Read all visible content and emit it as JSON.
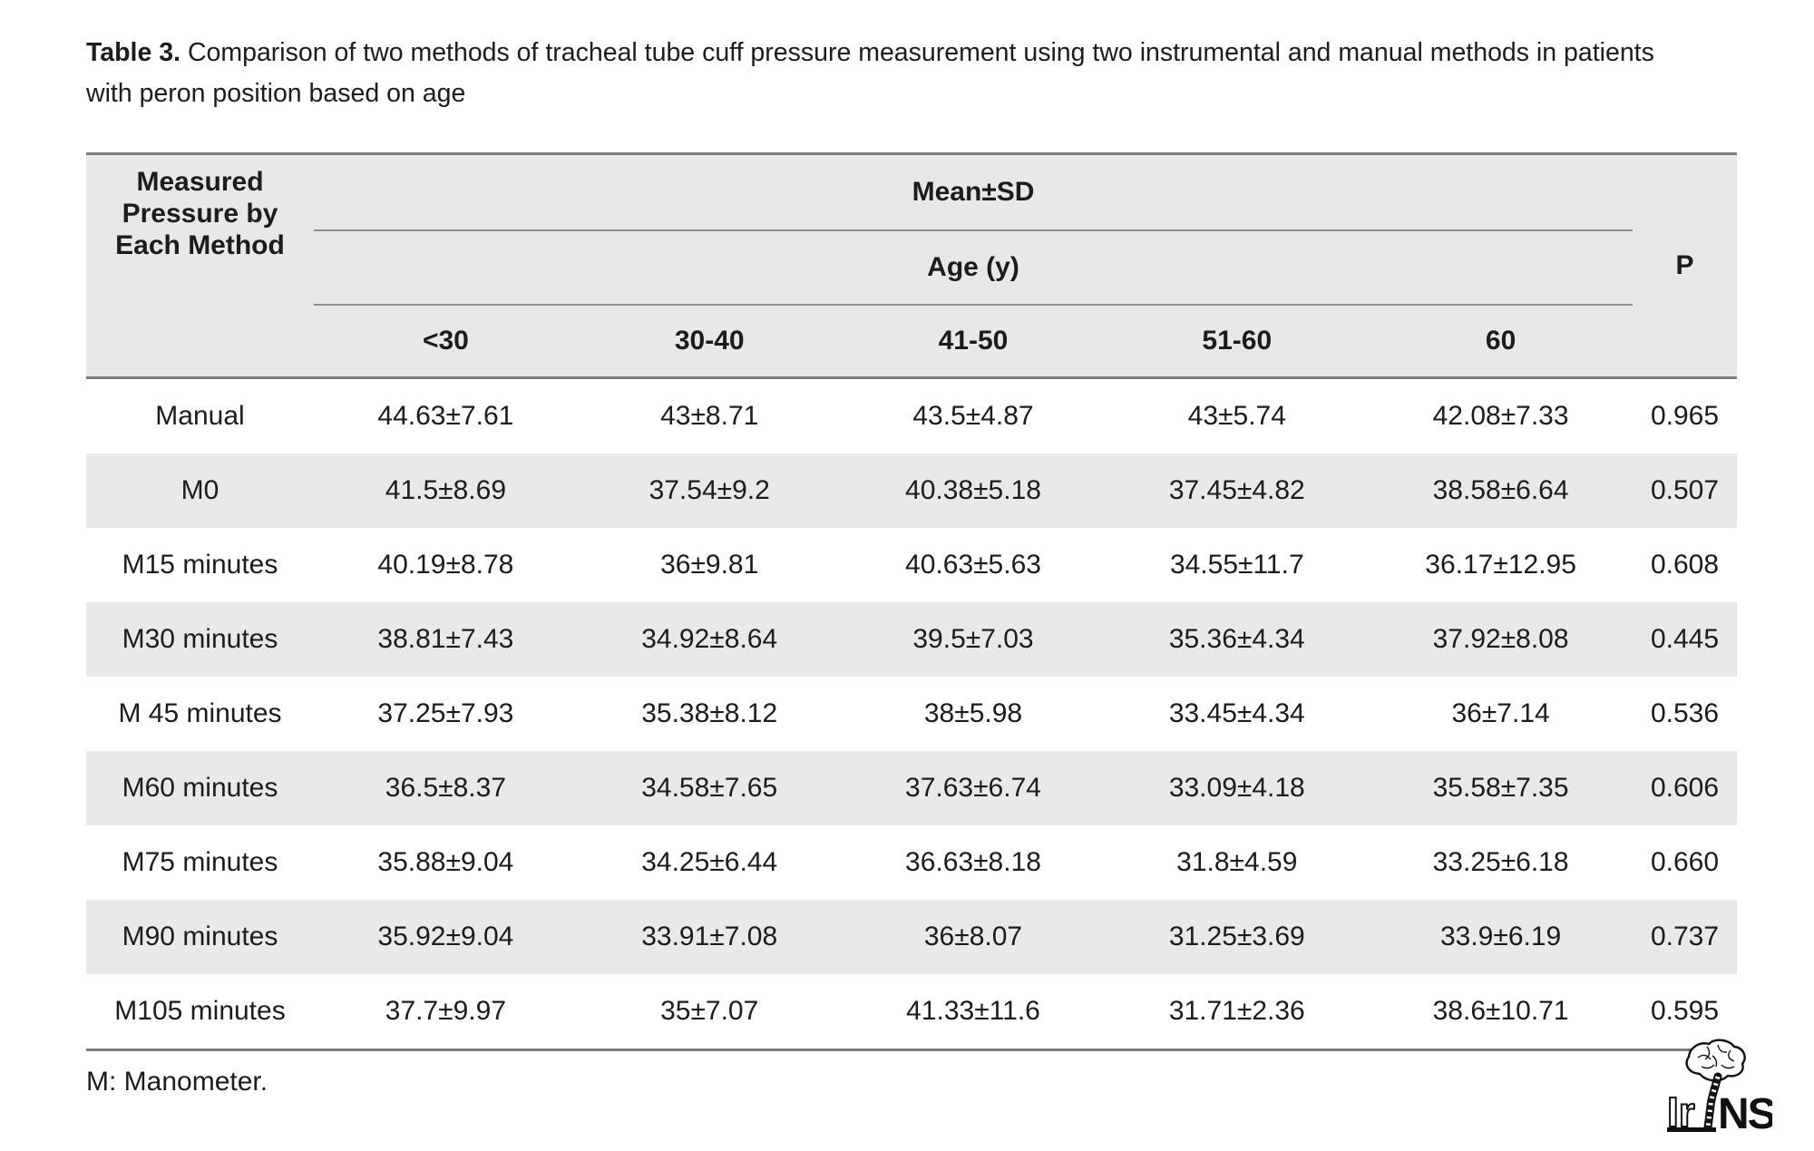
{
  "title": {
    "label": "Table 3.",
    "line1": "Comparison of two methods of tracheal tube cuff pressure measurement using two instrumental and manual methods in patients",
    "line2": "with peron position based on age"
  },
  "table": {
    "header": {
      "col_method": "Measured Pressure by Each Method",
      "mean_sd": "Mean±SD",
      "age": "Age (y)",
      "age_groups": [
        "<30",
        "30-40",
        "41-50",
        "51-60",
        "60"
      ],
      "p": "P"
    },
    "rows": [
      {
        "method": "Manual",
        "values": [
          "44.63±7.61",
          "43±8.71",
          "43.5±4.87",
          "43±5.74",
          "42.08±7.33"
        ],
        "p": "0.965"
      },
      {
        "method": "M0",
        "values": [
          "41.5±8.69",
          "37.54±9.2",
          "40.38±5.18",
          "37.45±4.82",
          "38.58±6.64"
        ],
        "p": "0.507"
      },
      {
        "method": "M15 minutes",
        "values": [
          "40.19±8.78",
          "36±9.81",
          "40.63±5.63",
          "34.55±11.7",
          "36.17±12.95"
        ],
        "p": "0.608"
      },
      {
        "method": "M30 minutes",
        "values": [
          "38.81±7.43",
          "34.92±8.64",
          "39.5±7.03",
          "35.36±4.34",
          "37.92±8.08"
        ],
        "p": "0.445"
      },
      {
        "method": "M 45 minutes",
        "values": [
          "37.25±7.93",
          "35.38±8.12",
          "38±5.98",
          "33.45±4.34",
          "36±7.14"
        ],
        "p": "0.536"
      },
      {
        "method": "M60 minutes",
        "values": [
          "36.5±8.37",
          "34.58±7.65",
          "37.63±6.74",
          "33.09±4.18",
          "35.58±7.35"
        ],
        "p": "0.606"
      },
      {
        "method": "M75 minutes",
        "values": [
          "35.88±9.04",
          "34.25±6.44",
          "36.63±8.18",
          "31.8±4.59",
          "33.25±6.18"
        ],
        "p": "0.660"
      },
      {
        "method": "M90 minutes",
        "values": [
          "35.92±9.04",
          "33.91±7.08",
          "36±8.07",
          "31.25±3.69",
          "33.9±6.19"
        ],
        "p": "0.737"
      },
      {
        "method": "M105 minutes",
        "values": [
          "37.7±9.97",
          "35±7.07",
          "41.33±11.6",
          "31.71±2.36",
          "38.6±10.71"
        ],
        "p": "0.595"
      }
    ],
    "footnote": "M: Manometer.",
    "colors": {
      "header_bg": "#e8e8e8",
      "row_alt_bg": "#e9e9e9",
      "rule_dark": "#7d7d7d",
      "rule_light": "#8f8f8f"
    }
  },
  "logo": {
    "left": "Ir",
    "right": "NS"
  }
}
